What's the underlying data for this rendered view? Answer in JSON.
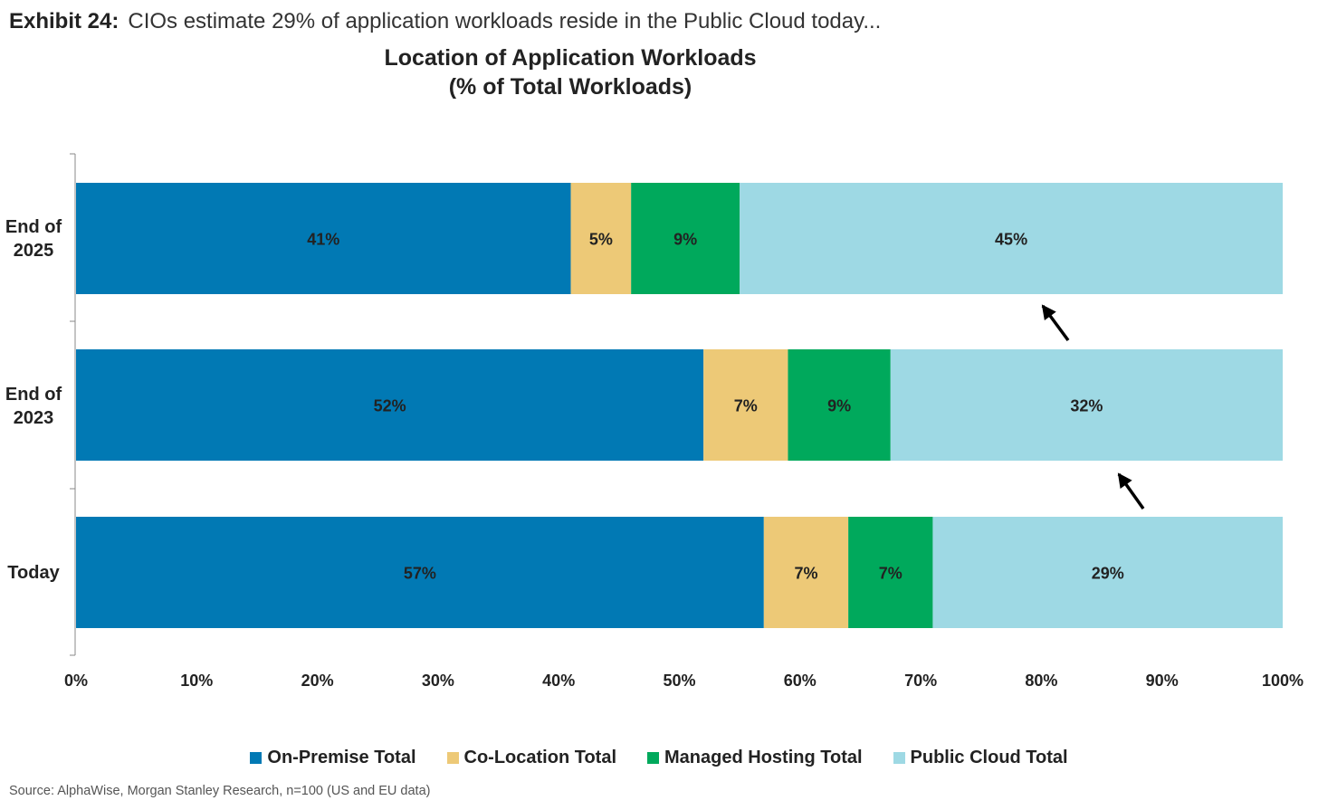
{
  "exhibit": {
    "label": "Exhibit 24:",
    "subtitle": "CIOs estimate 29% of application workloads reside in the Public Cloud today..."
  },
  "source": "Source: AlphaWise, Morgan Stanley Research, n=100 (US and EU data)",
  "chart_data": {
    "type": "bar",
    "orientation": "horizontal",
    "stacked": true,
    "title": "Location of Application Workloads",
    "title_line2": "(% of Total Workloads)",
    "categories": [
      [
        "End of",
        "2025"
      ],
      [
        "End of",
        "2023"
      ],
      [
        "Today"
      ]
    ],
    "series": [
      {
        "name": "On-Premise Total",
        "color": "#0179B4",
        "values": [
          41,
          52,
          57
        ],
        "labels": [
          "41%",
          "52%",
          "57%"
        ]
      },
      {
        "name": "Co-Location Total",
        "color": "#EDC977",
        "values": [
          5,
          7,
          7
        ],
        "labels": [
          "5%",
          "7%",
          "7%"
        ]
      },
      {
        "name": "Managed Hosting Total",
        "color": "#00A95C",
        "values": [
          9,
          8.5,
          7
        ],
        "labels": [
          "9%",
          "9%",
          "7%"
        ]
      },
      {
        "name": "Public Cloud Total",
        "color": "#9ED9E4",
        "values": [
          45,
          32.5,
          29
        ],
        "labels": [
          "45%",
          "32%",
          "29%"
        ]
      }
    ],
    "xlim": [
      0,
      100
    ],
    "xticks": [
      "0%",
      "10%",
      "20%",
      "30%",
      "40%",
      "50%",
      "60%",
      "70%",
      "80%",
      "90%",
      "100%"
    ],
    "grid": false,
    "legend_position": "bottom",
    "annotations": [
      "arrow",
      "arrow"
    ]
  }
}
